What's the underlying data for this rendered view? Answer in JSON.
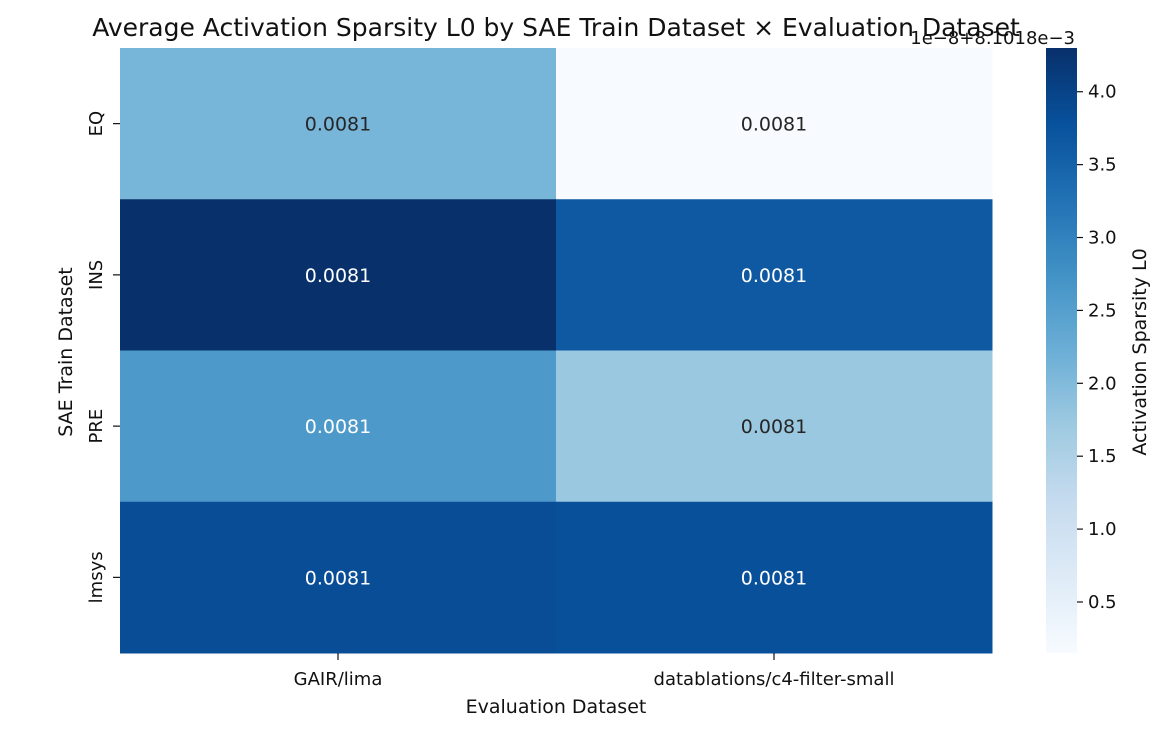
{
  "chart_data": {
    "type": "heatmap",
    "title": "Average Activation Sparsity L0 by SAE Train Dataset × Evaluation Dataset",
    "xlabel": "Evaluation Dataset",
    "ylabel": "SAE Train Dataset",
    "x_categories": [
      "GAIR/lima",
      "datablations/c4-filter-small"
    ],
    "y_categories": [
      "EQ",
      "INS",
      "PRE",
      "lmsys"
    ],
    "values": [
      [
        2.1,
        0.15
      ],
      [
        4.3,
        3.65
      ],
      [
        2.6,
        1.75
      ],
      [
        3.85,
        3.8
      ]
    ],
    "annotations": [
      [
        "0.0081",
        "0.0081"
      ],
      [
        "0.0081",
        "0.0081"
      ],
      [
        "0.0081",
        "0.0081"
      ],
      [
        "0.0081",
        "0.0081"
      ]
    ],
    "colorbar": {
      "label": "Activation Sparsity L0",
      "offset_text": "1e−8+8.1018e−3",
      "range": [
        0.15,
        4.3
      ],
      "ticks": [
        0.5,
        1.0,
        1.5,
        2.0,
        2.5,
        3.0,
        3.5,
        4.0
      ],
      "tick_labels": [
        "0.5",
        "1.0",
        "1.5",
        "2.0",
        "2.5",
        "3.0",
        "3.5",
        "4.0"
      ],
      "colormap": "Blues"
    }
  }
}
